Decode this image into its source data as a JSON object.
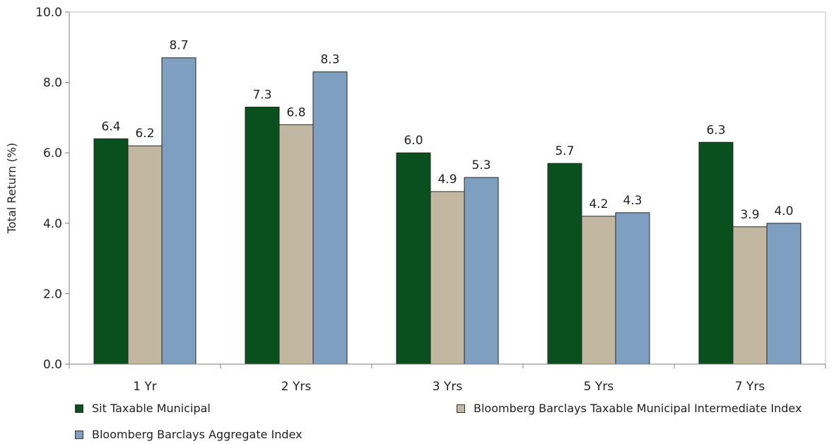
{
  "chart_data": {
    "type": "bar",
    "categories": [
      "1 Yr",
      "2 Yrs",
      "3 Yrs",
      "5 Yrs",
      "7 Yrs"
    ],
    "series": [
      {
        "name": "Sit Taxable Municipal",
        "color": "#0a4f1e",
        "values": [
          6.4,
          7.3,
          6.0,
          5.7,
          6.3
        ],
        "labels": [
          "6.4",
          "7.3",
          "6.0",
          "5.7",
          "6.3"
        ]
      },
      {
        "name": "Bloomberg Barclays Taxable Municipal Intermediate Index",
        "color": "#c2b8a2",
        "values": [
          6.2,
          6.8,
          4.9,
          4.2,
          3.9
        ],
        "labels": [
          "6.2",
          "6.8",
          "4.9",
          "4.2",
          "3.9"
        ]
      },
      {
        "name": "Bloomberg Barclays Aggregate Index",
        "color": "#7e9fc0",
        "values": [
          8.7,
          8.3,
          5.3,
          4.3,
          4.0
        ],
        "labels": [
          "8.7",
          "8.3",
          "5.3",
          "4.3",
          "4.0"
        ]
      }
    ],
    "ylabel": "Total Return (%)",
    "ylim": [
      0,
      10
    ],
    "yticks": [
      "0.0",
      "2.0",
      "4.0",
      "6.0",
      "8.0",
      "10.0"
    ],
    "grid": false,
    "legend": "bottom"
  }
}
